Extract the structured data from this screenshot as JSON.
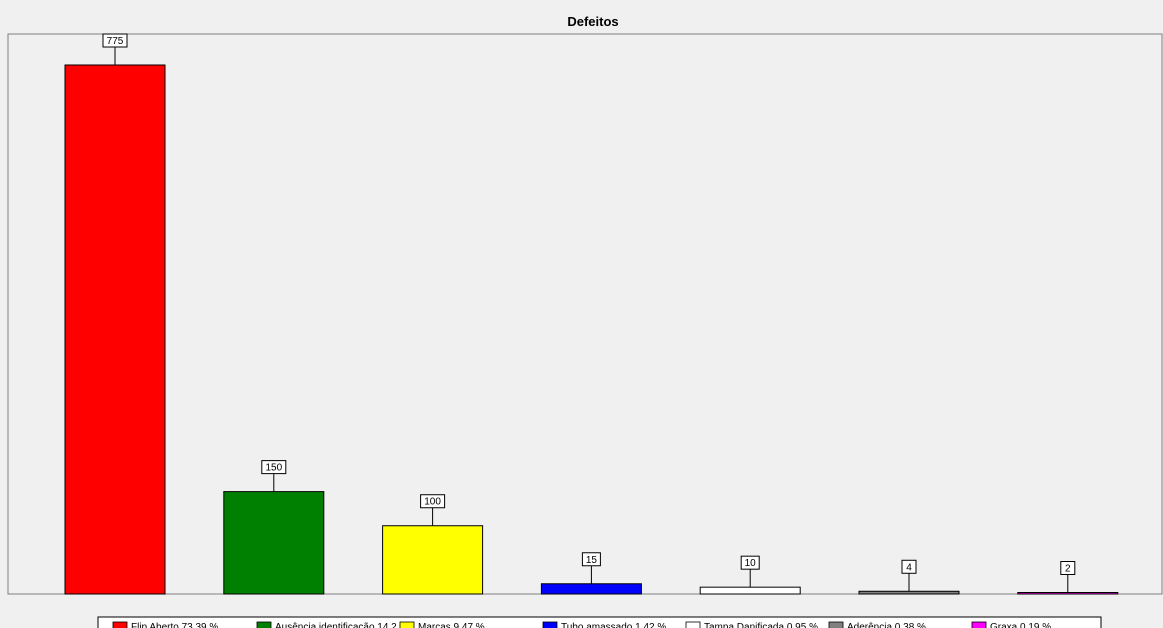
{
  "chart_data": {
    "type": "bar",
    "title": "Defeitos",
    "xlabel": "",
    "ylabel": "",
    "ylim": [
      0,
      800
    ],
    "grid": false,
    "legend_position": "bottom",
    "categories": [
      "Flip Aberto",
      "Ausência identificação",
      "Marcas",
      "Tubo amassado",
      "Tampa Danificada",
      "Aderência",
      "Graxa"
    ],
    "values": [
      775,
      150,
      100,
      15,
      10,
      4,
      2
    ],
    "data_labels": [
      "775",
      "150",
      "100",
      "15",
      "10",
      "4",
      "2"
    ],
    "colors": [
      "#ff0000",
      "#008000",
      "#ffff00",
      "#0000ff",
      "#ffffff",
      "#808080",
      "#ff00ff"
    ],
    "legend": [
      "Flip Aberto 73.39 %",
      "Ausência identificação 14.2 %",
      "Marcas 9.47 %",
      "Tubo amassado 1.42 %",
      "Tampa Danificada 0.95 %",
      "Aderência 0.38 %",
      "Graxa 0.19 %"
    ]
  }
}
